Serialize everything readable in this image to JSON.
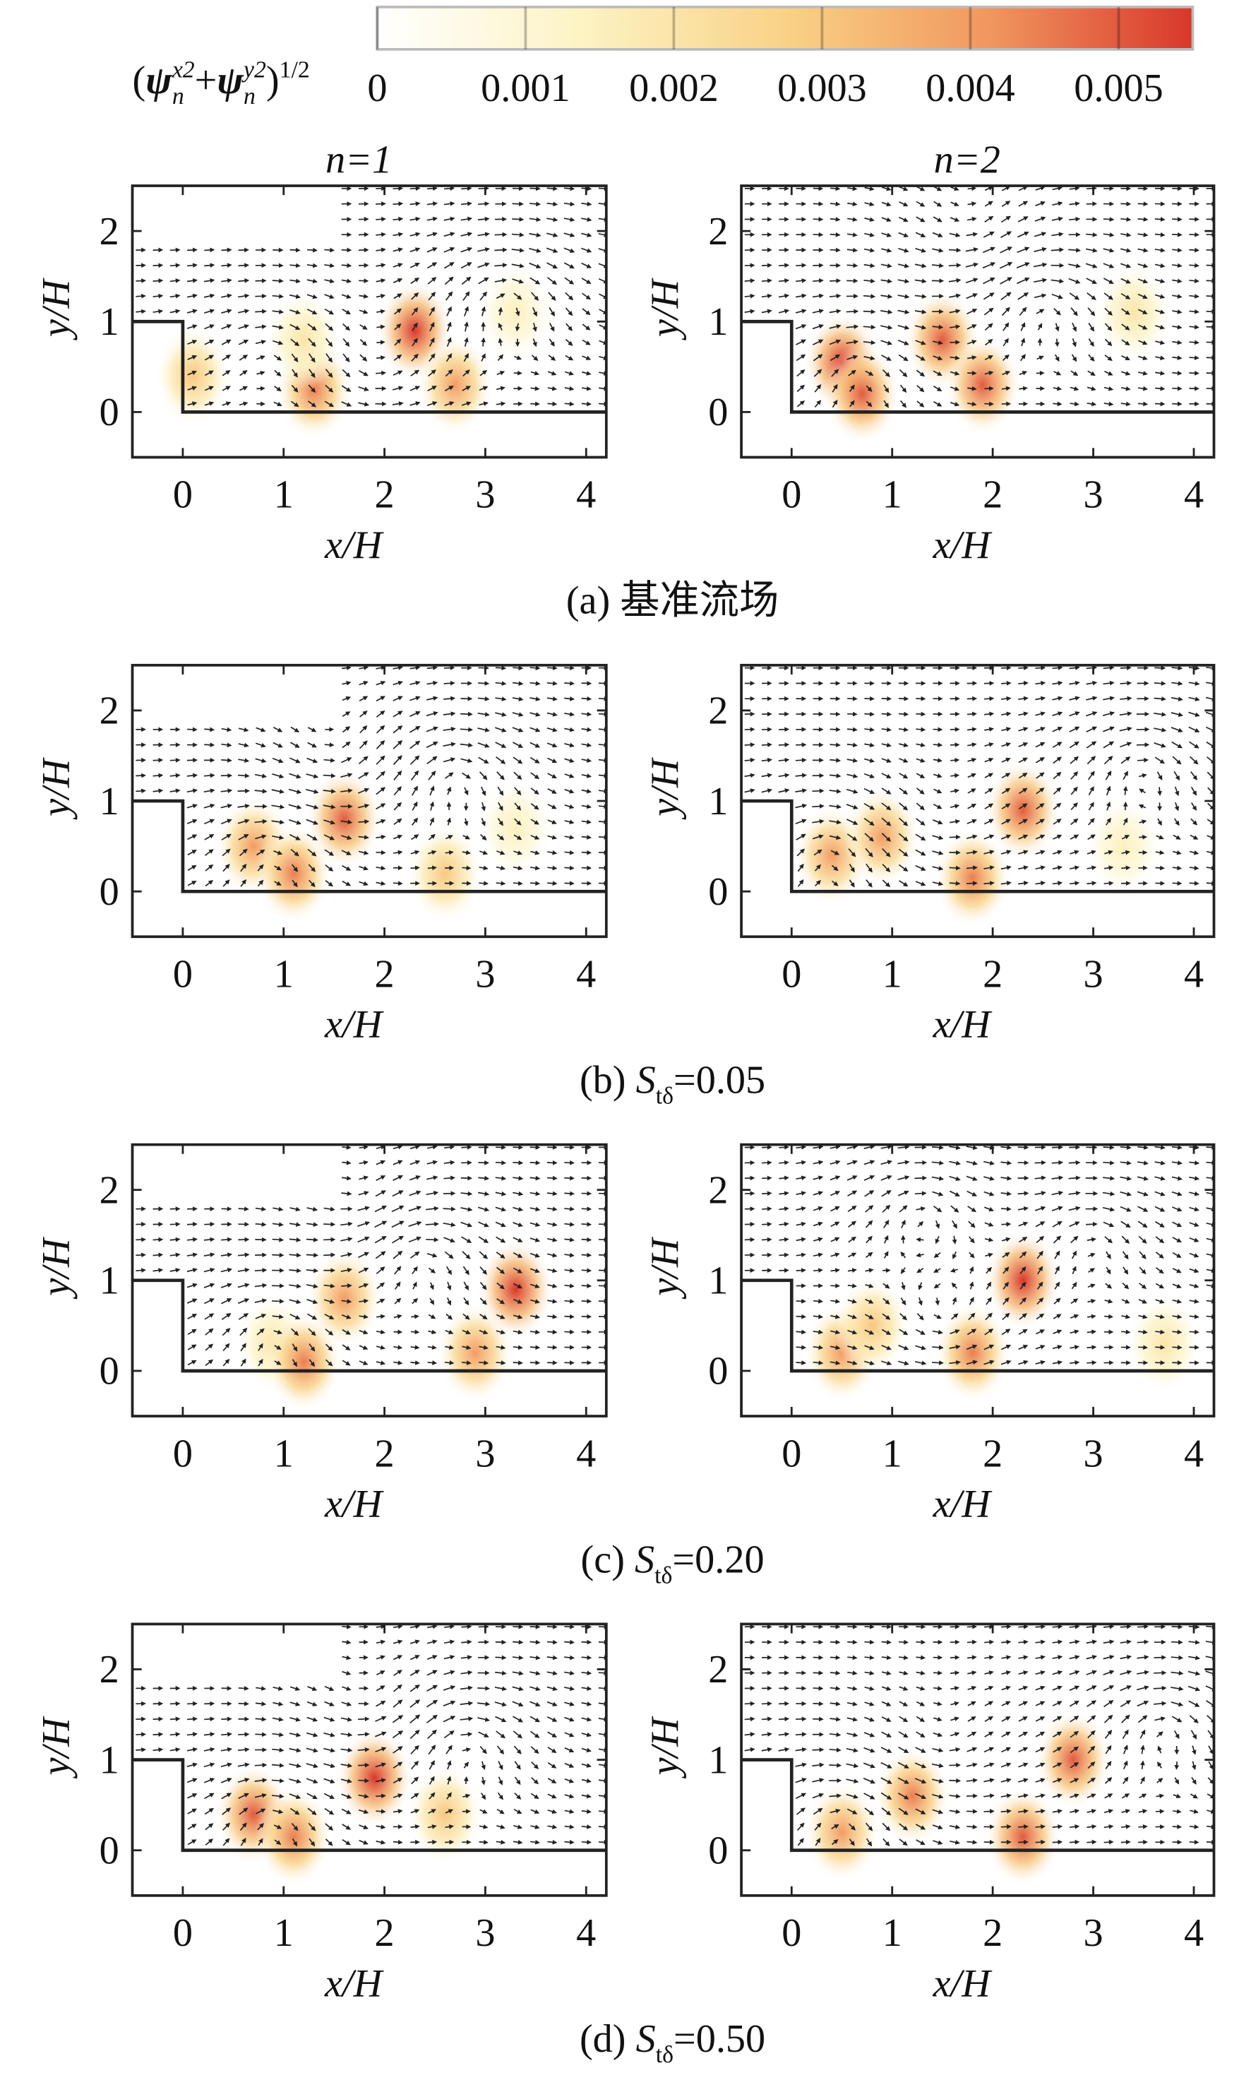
{
  "colorbar": {
    "label_parts": [
      "(",
      "ψ",
      "n",
      "x2",
      "+",
      "ψ",
      "n",
      "y2",
      ")",
      "1/2"
    ],
    "clim": [
      0,
      0.0055
    ],
    "ticks": [
      0,
      0.001,
      0.002,
      0.003,
      0.004,
      0.005
    ],
    "colors": [
      "#ffffff",
      "#fdf3c4",
      "#f9d287",
      "#f1975f",
      "#d8372b"
    ]
  },
  "captions": [
    [
      "(a) 基准流场"
    ],
    [
      "(b) ",
      "S",
      "tδ",
      "=0.05"
    ],
    [
      "(c) ",
      "S",
      "tδ",
      "=0.20"
    ],
    [
      "(d) ",
      "S",
      "tδ",
      "=0.50"
    ]
  ],
  "chart_data": [
    {
      "type": "quiver",
      "title": "n=1",
      "xlabel": "x/H",
      "ylabel": "y/H",
      "xlim": [
        -0.5,
        4.2
      ],
      "ylim": [
        -0.5,
        2.5
      ],
      "xticks": [
        0,
        1,
        2,
        3,
        4
      ],
      "yticks": [
        0,
        1,
        2
      ],
      "hotspots": [
        {
          "x": 0.1,
          "y": 0.4,
          "value": 0.003
        },
        {
          "x": 1.3,
          "y": 0.25,
          "value": 0.0045
        },
        {
          "x": 1.2,
          "y": 0.8,
          "value": 0.002
        },
        {
          "x": 2.3,
          "y": 0.9,
          "value": 0.0055
        },
        {
          "x": 2.7,
          "y": 0.3,
          "value": 0.004
        },
        {
          "x": 3.3,
          "y": 1.1,
          "value": 0.0015
        }
      ],
      "vortices": [
        {
          "x": 3.2,
          "y": 1.3,
          "circulation": -1
        },
        {
          "x": 0.9,
          "y": 0.7,
          "circulation": -0.6
        },
        {
          "x": 1.9,
          "y": 0.5,
          "circulation": 0.5
        }
      ]
    },
    {
      "type": "quiver",
      "title": "n=2",
      "xlabel": "x/H",
      "ylabel": "y/H",
      "xlim": [
        -0.5,
        4.2
      ],
      "ylim": [
        -0.5,
        2.5
      ],
      "xticks": [
        0,
        1,
        2,
        3,
        4
      ],
      "yticks": [
        0,
        1,
        2
      ],
      "hotspots": [
        {
          "x": 0.5,
          "y": 0.55,
          "value": 0.0055
        },
        {
          "x": 0.7,
          "y": 0.2,
          "value": 0.005
        },
        {
          "x": 1.5,
          "y": 0.8,
          "value": 0.005
        },
        {
          "x": 1.9,
          "y": 0.3,
          "value": 0.005
        },
        {
          "x": 3.4,
          "y": 1.1,
          "value": 0.002
        }
      ],
      "vortices": [
        {
          "x": 0.7,
          "y": 0.5,
          "circulation": -0.8
        },
        {
          "x": 2.5,
          "y": 1.2,
          "circulation": -1
        },
        {
          "x": 1.8,
          "y": 2.0,
          "circulation": 0.6
        }
      ]
    },
    {
      "type": "quiver",
      "xlabel": "x/H",
      "ylabel": "y/H",
      "xlim": [
        -0.5,
        4.2
      ],
      "ylim": [
        -0.5,
        2.5
      ],
      "xticks": [
        0,
        1,
        2,
        3,
        4
      ],
      "yticks": [
        0,
        1,
        2
      ],
      "hotspots": [
        {
          "x": 0.7,
          "y": 0.5,
          "value": 0.004
        },
        {
          "x": 1.1,
          "y": 0.2,
          "value": 0.0045
        },
        {
          "x": 1.6,
          "y": 0.8,
          "value": 0.005
        },
        {
          "x": 2.6,
          "y": 0.2,
          "value": 0.003
        },
        {
          "x": 3.3,
          "y": 0.7,
          "value": 0.0015
        }
      ],
      "vortices": [
        {
          "x": 0.9,
          "y": 0.5,
          "circulation": -0.8
        },
        {
          "x": 2.7,
          "y": 1.3,
          "circulation": -1
        },
        {
          "x": 1.5,
          "y": 1.5,
          "circulation": 0.6
        }
      ]
    },
    {
      "type": "quiver",
      "xlabel": "x/H",
      "ylabel": "y/H",
      "xlim": [
        -0.5,
        4.2
      ],
      "ylim": [
        -0.5,
        2.5
      ],
      "xticks": [
        0,
        1,
        2,
        3,
        4
      ],
      "yticks": [
        0,
        1,
        2
      ],
      "hotspots": [
        {
          "x": 0.4,
          "y": 0.4,
          "value": 0.004
        },
        {
          "x": 0.9,
          "y": 0.6,
          "value": 0.004
        },
        {
          "x": 1.8,
          "y": 0.15,
          "value": 0.0045
        },
        {
          "x": 2.3,
          "y": 0.9,
          "value": 0.005
        },
        {
          "x": 3.3,
          "y": 0.5,
          "value": 0.0015
        }
      ],
      "vortices": [
        {
          "x": 0.4,
          "y": 0.5,
          "circulation": -0.8
        },
        {
          "x": 3.5,
          "y": 1.4,
          "circulation": -1
        },
        {
          "x": 1.5,
          "y": 0.8,
          "circulation": 0.5
        }
      ]
    },
    {
      "type": "quiver",
      "xlabel": "x/H",
      "ylabel": "y/H",
      "xlim": [
        -0.5,
        4.2
      ],
      "ylim": [
        -0.5,
        2.5
      ],
      "xticks": [
        0,
        1,
        2,
        3,
        4
      ],
      "yticks": [
        0,
        1,
        2
      ],
      "hotspots": [
        {
          "x": 0.9,
          "y": 0.3,
          "value": 0.002
        },
        {
          "x": 1.2,
          "y": 0.1,
          "value": 0.0045
        },
        {
          "x": 1.6,
          "y": 0.8,
          "value": 0.004
        },
        {
          "x": 3.3,
          "y": 0.9,
          "value": 0.0055
        },
        {
          "x": 2.9,
          "y": 0.2,
          "value": 0.004
        }
      ],
      "vortices": [
        {
          "x": 0.9,
          "y": 0.5,
          "circulation": -0.8
        },
        {
          "x": 2.4,
          "y": 1.3,
          "circulation": -1
        },
        {
          "x": 1.8,
          "y": 1.9,
          "circulation": 0.5
        }
      ]
    },
    {
      "type": "quiver",
      "xlabel": "x/H",
      "ylabel": "y/H",
      "xlim": [
        -0.5,
        4.2
      ],
      "ylim": [
        -0.5,
        2.5
      ],
      "xticks": [
        0,
        1,
        2,
        3,
        4
      ],
      "yticks": [
        0,
        1,
        2
      ],
      "hotspots": [
        {
          "x": 0.5,
          "y": 0.2,
          "value": 0.004
        },
        {
          "x": 0.8,
          "y": 0.5,
          "value": 0.003
        },
        {
          "x": 1.8,
          "y": 0.2,
          "value": 0.0045
        },
        {
          "x": 2.3,
          "y": 1.0,
          "value": 0.0055
        },
        {
          "x": 3.7,
          "y": 0.3,
          "value": 0.002
        }
      ],
      "vortices": [
        {
          "x": 1.3,
          "y": 1.8,
          "circulation": -0.8
        },
        {
          "x": 1.5,
          "y": 0.5,
          "circulation": 0.6
        },
        {
          "x": 3.0,
          "y": 1.5,
          "circulation": -0.8
        }
      ]
    },
    {
      "type": "quiver",
      "xlabel": "x/H",
      "ylabel": "y/H",
      "xlim": [
        -0.5,
        4.2
      ],
      "ylim": [
        -0.5,
        2.5
      ],
      "xticks": [
        0,
        1,
        2,
        3,
        4
      ],
      "yticks": [
        0,
        1,
        2
      ],
      "hotspots": [
        {
          "x": 0.7,
          "y": 0.4,
          "value": 0.005
        },
        {
          "x": 1.1,
          "y": 0.15,
          "value": 0.0045
        },
        {
          "x": 1.9,
          "y": 0.8,
          "value": 0.0055
        },
        {
          "x": 2.6,
          "y": 0.4,
          "value": 0.003
        }
      ],
      "vortices": [
        {
          "x": 0.9,
          "y": 0.4,
          "circulation": -0.8
        },
        {
          "x": 2.8,
          "y": 1.2,
          "circulation": -1
        },
        {
          "x": 1.9,
          "y": 1.6,
          "circulation": 0.5
        }
      ]
    },
    {
      "type": "quiver",
      "xlabel": "x/H",
      "ylabel": "y/H",
      "xlim": [
        -0.5,
        4.2
      ],
      "ylim": [
        -0.5,
        2.5
      ],
      "xticks": [
        0,
        1,
        2,
        3,
        4
      ],
      "yticks": [
        0,
        1,
        2
      ],
      "hotspots": [
        {
          "x": 0.5,
          "y": 0.2,
          "value": 0.004
        },
        {
          "x": 1.2,
          "y": 0.6,
          "value": 0.0045
        },
        {
          "x": 2.3,
          "y": 0.15,
          "value": 0.005
        },
        {
          "x": 2.8,
          "y": 1.0,
          "value": 0.005
        }
      ],
      "vortices": [
        {
          "x": 0.5,
          "y": 0.4,
          "circulation": -0.8
        },
        {
          "x": 3.7,
          "y": 1.4,
          "circulation": -1
        },
        {
          "x": 1.5,
          "y": 1.2,
          "circulation": 0.5
        }
      ]
    }
  ]
}
